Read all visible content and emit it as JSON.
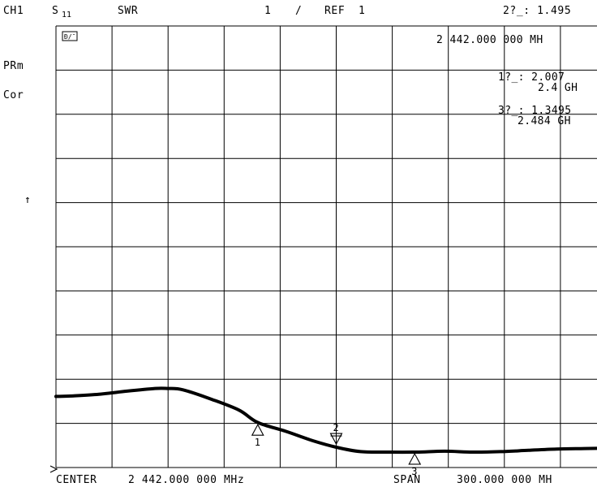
{
  "header": {
    "channel": "CH1",
    "param_main": "S",
    "param_sub": "11",
    "format": "SWR",
    "scale_value": "1",
    "scale_sep": "/",
    "ref_label": "REF",
    "ref_value": "1",
    "active_marker_readout": "2?_: 1.495"
  },
  "side_labels": {
    "prm": "PRm",
    "cor": "Cor",
    "ref_arrow": "↑"
  },
  "stamp": "Ð/¯",
  "marker_readouts": {
    "m2_freq": "2 442.000 000 MH",
    "m1_value": "1?_: 2.007",
    "m1_freq": "2.4 GH",
    "m3_value": "3?_: 1.3495",
    "m3_freq": "2.484 GH"
  },
  "footer": {
    "center_label": "CENTER",
    "center_value": "2 442.000 000 MHz",
    "span_label": "SPAN",
    "span_value": "300.000 000 MH"
  },
  "chart_data": {
    "type": "line",
    "xlabel": "",
    "ylabel": "",
    "x_center_mhz": 2442.0,
    "x_span_mhz": 300.0,
    "xlim": [
      2292,
      2592
    ],
    "ylim": [
      1.0,
      11.0
    ],
    "grid": true,
    "y_divisions": 10,
    "series": [
      {
        "x": [
          2292,
          2300,
          2315,
          2330,
          2345,
          2352,
          2360,
          2375,
          2390,
          2400,
          2415,
          2430,
          2442,
          2455,
          2470,
          2485,
          2500,
          2515,
          2530,
          2545,
          2560,
          2575,
          2592
        ],
        "y": [
          2.61,
          2.62,
          2.66,
          2.73,
          2.79,
          2.79,
          2.76,
          2.55,
          2.3,
          2.02,
          1.82,
          1.6,
          1.46,
          1.36,
          1.35,
          1.35,
          1.37,
          1.35,
          1.36,
          1.39,
          1.42,
          1.43,
          1.44
        ]
      }
    ],
    "markers": [
      {
        "id": "1",
        "x": 2400,
        "y": 2.007,
        "style": "up"
      },
      {
        "id": "2",
        "x": 2442,
        "y": 1.495,
        "style": "down"
      },
      {
        "id": "3",
        "x": 2484,
        "y": 1.3495,
        "style": "up"
      }
    ]
  }
}
